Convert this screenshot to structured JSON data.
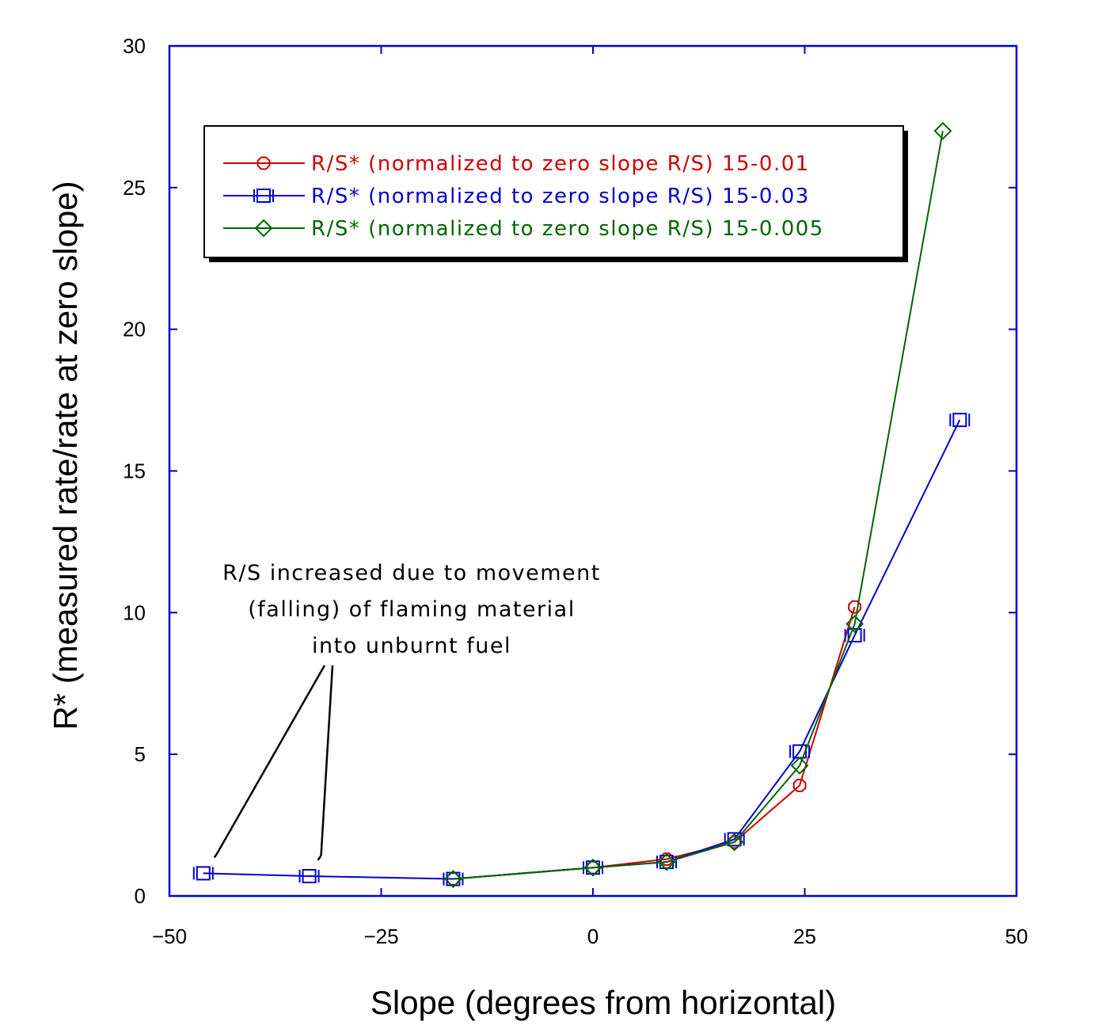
{
  "chart_data": {
    "type": "line",
    "title": "",
    "xlabel": "Slope (degrees from horizontal)",
    "ylabel": "R* (measured rate/rate at zero slope)",
    "xlim": [
      -50,
      50
    ],
    "ylim": [
      0,
      30
    ],
    "xticks": [
      -50,
      -25,
      0,
      25,
      50
    ],
    "xtick_labels": [
      "−50",
      "−25",
      "0",
      "25",
      "50"
    ],
    "yticks": [
      0,
      5,
      10,
      15,
      20,
      25,
      30
    ],
    "ytick_labels": [
      "0",
      "5",
      "10",
      "15",
      "20",
      "25",
      "30"
    ],
    "grid": false,
    "legend_position": "top-left",
    "series": [
      {
        "name": "R/S* (normalized to zero slope R/S) 15-0.01",
        "color": "#cc0000",
        "marker": "circle",
        "x": [
          -16.5,
          0,
          8.7,
          16.7,
          24.4,
          30.9
        ],
        "y": [
          0.6,
          1.0,
          1.3,
          1.9,
          3.9,
          10.2
        ]
      },
      {
        "name": "R/S* (normalized to zero slope R/S) 15-0.03",
        "color": "#0000cc",
        "marker": "square",
        "x": [
          -46,
          -33.5,
          -16.5,
          0,
          8.7,
          16.7,
          24.4,
          30.9,
          43.3
        ],
        "y": [
          0.8,
          0.7,
          0.6,
          1.0,
          1.2,
          2.0,
          5.1,
          9.2,
          16.8
        ]
      },
      {
        "name": "R/S* (normalized to zero slope R/S) 15-0.005",
        "color": "#006600",
        "marker": "diamond",
        "x": [
          -16.5,
          0,
          8.7,
          16.7,
          24.4,
          30.9,
          41.3
        ],
        "y": [
          0.6,
          1.0,
          1.2,
          1.9,
          4.6,
          9.6,
          27.0
        ]
      }
    ],
    "annotations": [
      {
        "lines": [
          "R/S increased due to movement",
          "(falling) of flaming material",
          "into unburnt fuel"
        ],
        "points_to": [
          [
            -46,
            0.8
          ],
          [
            -33.5,
            0.7
          ]
        ]
      }
    ]
  }
}
